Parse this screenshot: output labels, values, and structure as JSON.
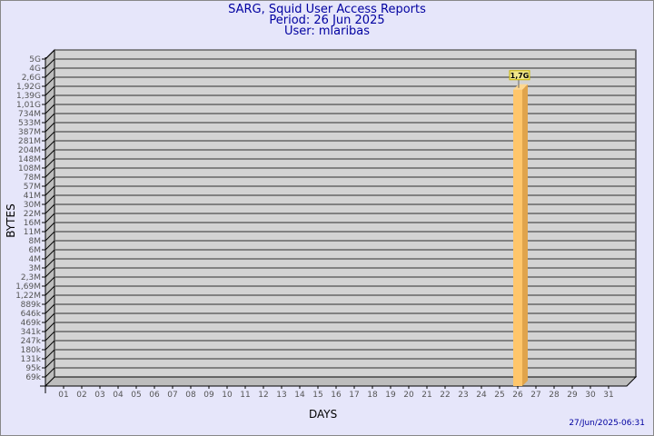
{
  "header": {
    "title": "SARG, Squid User Access Reports",
    "period": "Period: 26 Jun 2025",
    "user": "User: mlaribas"
  },
  "timestamp": "27/Jun/2025-06:31",
  "colors": {
    "background": "#e6e6fa",
    "plot": "#d3d3d3",
    "bar": "#ffc66b",
    "bar_side": "#e0a44c",
    "title": "#0000a0",
    "label_box": "#f0e68c"
  },
  "chart_data": {
    "type": "bar",
    "xlabel": "DAYS",
    "ylabel": "BYTES",
    "yscale": "log",
    "grid": true,
    "categories": [
      "01",
      "02",
      "03",
      "04",
      "05",
      "06",
      "07",
      "08",
      "09",
      "10",
      "11",
      "12",
      "13",
      "14",
      "15",
      "16",
      "17",
      "18",
      "19",
      "20",
      "21",
      "22",
      "23",
      "24",
      "25",
      "26",
      "27",
      "28",
      "29",
      "30",
      "31"
    ],
    "yticks": [
      "5G",
      "4G",
      "2,6G",
      "1,92G",
      "1,39G",
      "1,01G",
      "734M",
      "533M",
      "387M",
      "281M",
      "204M",
      "148M",
      "108M",
      "78M",
      "57M",
      "41M",
      "30M",
      "22M",
      "16M",
      "11M",
      "8M",
      "6M",
      "4M",
      "3M",
      "2,3M",
      "1,69M",
      "1,22M",
      "889k",
      "646k",
      "469k",
      "341k",
      "247k",
      "180k",
      "131k",
      "95k",
      "69k"
    ],
    "bars": [
      {
        "category": "26",
        "value": 1700000000,
        "label": "1,7G"
      }
    ]
  }
}
